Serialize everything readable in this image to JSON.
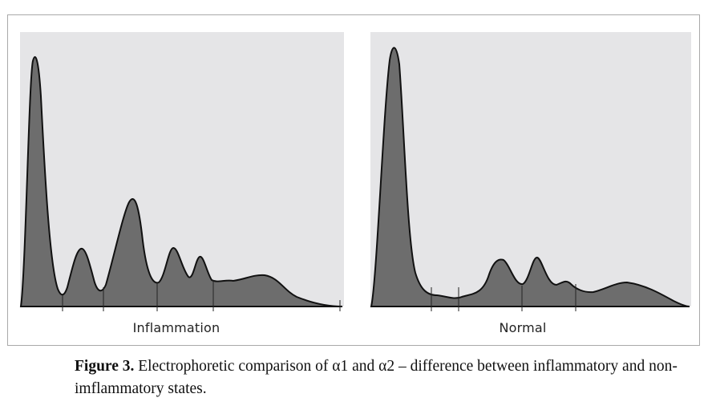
{
  "figure": {
    "panels": [
      {
        "label": "Inflammation"
      },
      {
        "label": "Normal"
      }
    ],
    "caption_prefix": "Figure 3.",
    "caption_text": "Electrophoretic comparison of α1 and α2 – difference between inflammatory and non-imflammatory states."
  },
  "colors": {
    "plot_background": "#e5e5e7",
    "curve_fill": "#6d6d6d",
    "curve_stroke": "#111111",
    "frame_border": "#a9a9a9"
  }
}
